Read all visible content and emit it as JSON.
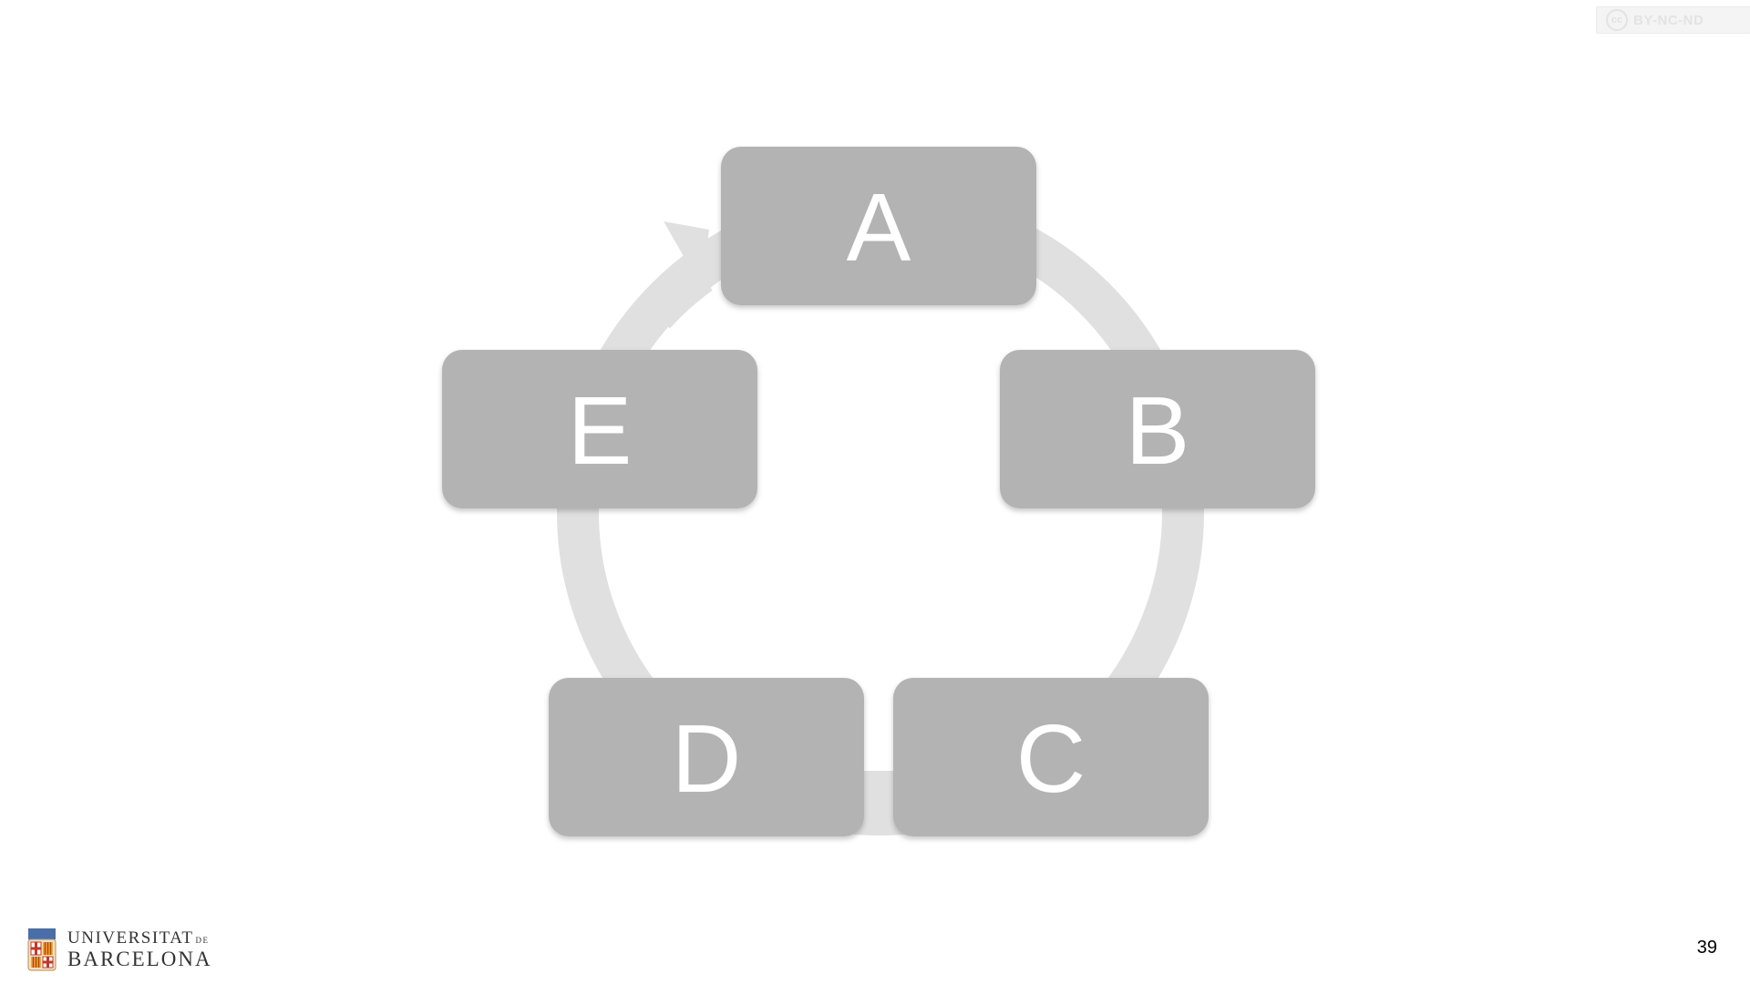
{
  "license": {
    "text": "BY-NC-ND",
    "icon": "cc-icon"
  },
  "diagram": {
    "type": "cycle",
    "nodes": [
      {
        "id": "a",
        "label": "A"
      },
      {
        "id": "b",
        "label": "B"
      },
      {
        "id": "c",
        "label": "C"
      },
      {
        "id": "d",
        "label": "D"
      },
      {
        "id": "e",
        "label": "E"
      }
    ],
    "direction": "clockwise",
    "colors": {
      "node_fill": "#b3b3b3",
      "node_text": "#ffffff",
      "ring": "#e0e0e0"
    }
  },
  "footer": {
    "logo_line1": "UNIVERSITAT",
    "logo_de": "DE",
    "logo_line2": "BARCELONA",
    "page_number": "39"
  }
}
